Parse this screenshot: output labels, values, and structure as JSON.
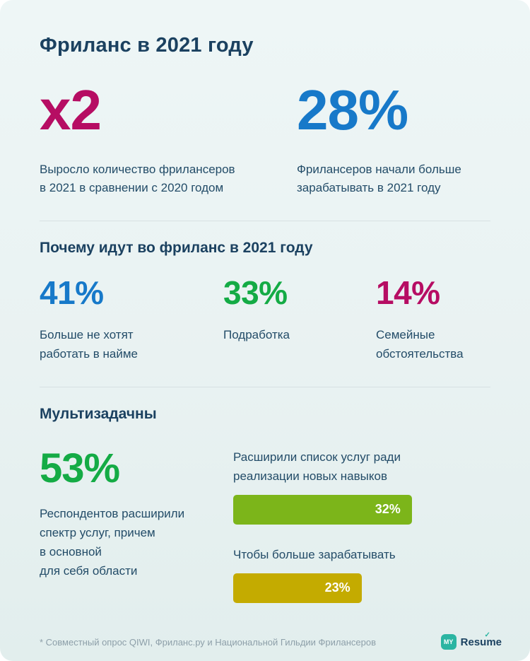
{
  "title": "Фриланс в 2021 году",
  "colors": {
    "magenta": "#b60d63",
    "blue": "#1779c9",
    "green": "#14ab45",
    "bar_green": "#7cb51a",
    "bar_yellow": "#c4ab00",
    "heading_navy": "#1b4160",
    "logo_teal": "#2bb5a2"
  },
  "hero_stats": [
    {
      "value": "x2",
      "color": "#b60d63",
      "caption": "Выросло количество фрилансеров\nв 2021 в сравнении с 2020 годом"
    },
    {
      "value": "28%",
      "color": "#1779c9",
      "caption": "Фрилансеров начали больше\nзарабатывать в 2021 году"
    }
  ],
  "why_section": {
    "heading": "Почему идут во фриланс в 2021 году",
    "items": [
      {
        "value": "41%",
        "color": "#1779c9",
        "caption": "Больше не хотят\nработать в найме"
      },
      {
        "value": "33%",
        "color": "#14ab45",
        "caption": "Подработка"
      },
      {
        "value": "14%",
        "color": "#b60d63",
        "caption": "Семейные\nобстоятельства"
      }
    ]
  },
  "multitask_section": {
    "heading": "Мультизадачны",
    "stat": {
      "value": "53%",
      "color": "#14ab45",
      "caption": "Респондентов расширили\nспектр услуг, причем\nв основной\nдля себя области"
    },
    "bars": [
      {
        "label": "Расширили список услуг ради\nреализации новых навыков",
        "value": 32,
        "value_label": "32%",
        "color": "#7cb51a"
      },
      {
        "label": "Чтобы больше зарабатывать",
        "value": 23,
        "value_label": "23%",
        "color": "#c4ab00"
      }
    ]
  },
  "footer": {
    "note": "* Совместный опрос QIWI, Фриланс.ру и Национальной Гильдии Фрилансеров",
    "logo": {
      "icon_text": "MY",
      "text": "Resume"
    }
  },
  "chart_data": [
    {
      "type": "table",
      "title": "Фриланс в 2021 году — ключевые показатели",
      "rows": [
        [
          "x2",
          "Выросло количество фрилансеров в 2021 в сравнении с 2020 годом"
        ],
        [
          "28%",
          "Фрилансеров начали больше зарабатывать в 2021 году"
        ],
        [
          "41%",
          "Больше не хотят работать в найме"
        ],
        [
          "33%",
          "Подработка"
        ],
        [
          "14%",
          "Семейные обстоятельства"
        ],
        [
          "53%",
          "Респондентов расширили спектр услуг, причем в основной для себя области"
        ]
      ]
    },
    {
      "type": "bar",
      "title": "Мультизадачны",
      "categories": [
        "Расширили список услуг ради реализации новых навыков",
        "Чтобы больше зарабатывать"
      ],
      "values": [
        32,
        23
      ],
      "unit": "%",
      "xlabel": "",
      "ylabel": "",
      "xlim": [
        0,
        46
      ]
    }
  ]
}
